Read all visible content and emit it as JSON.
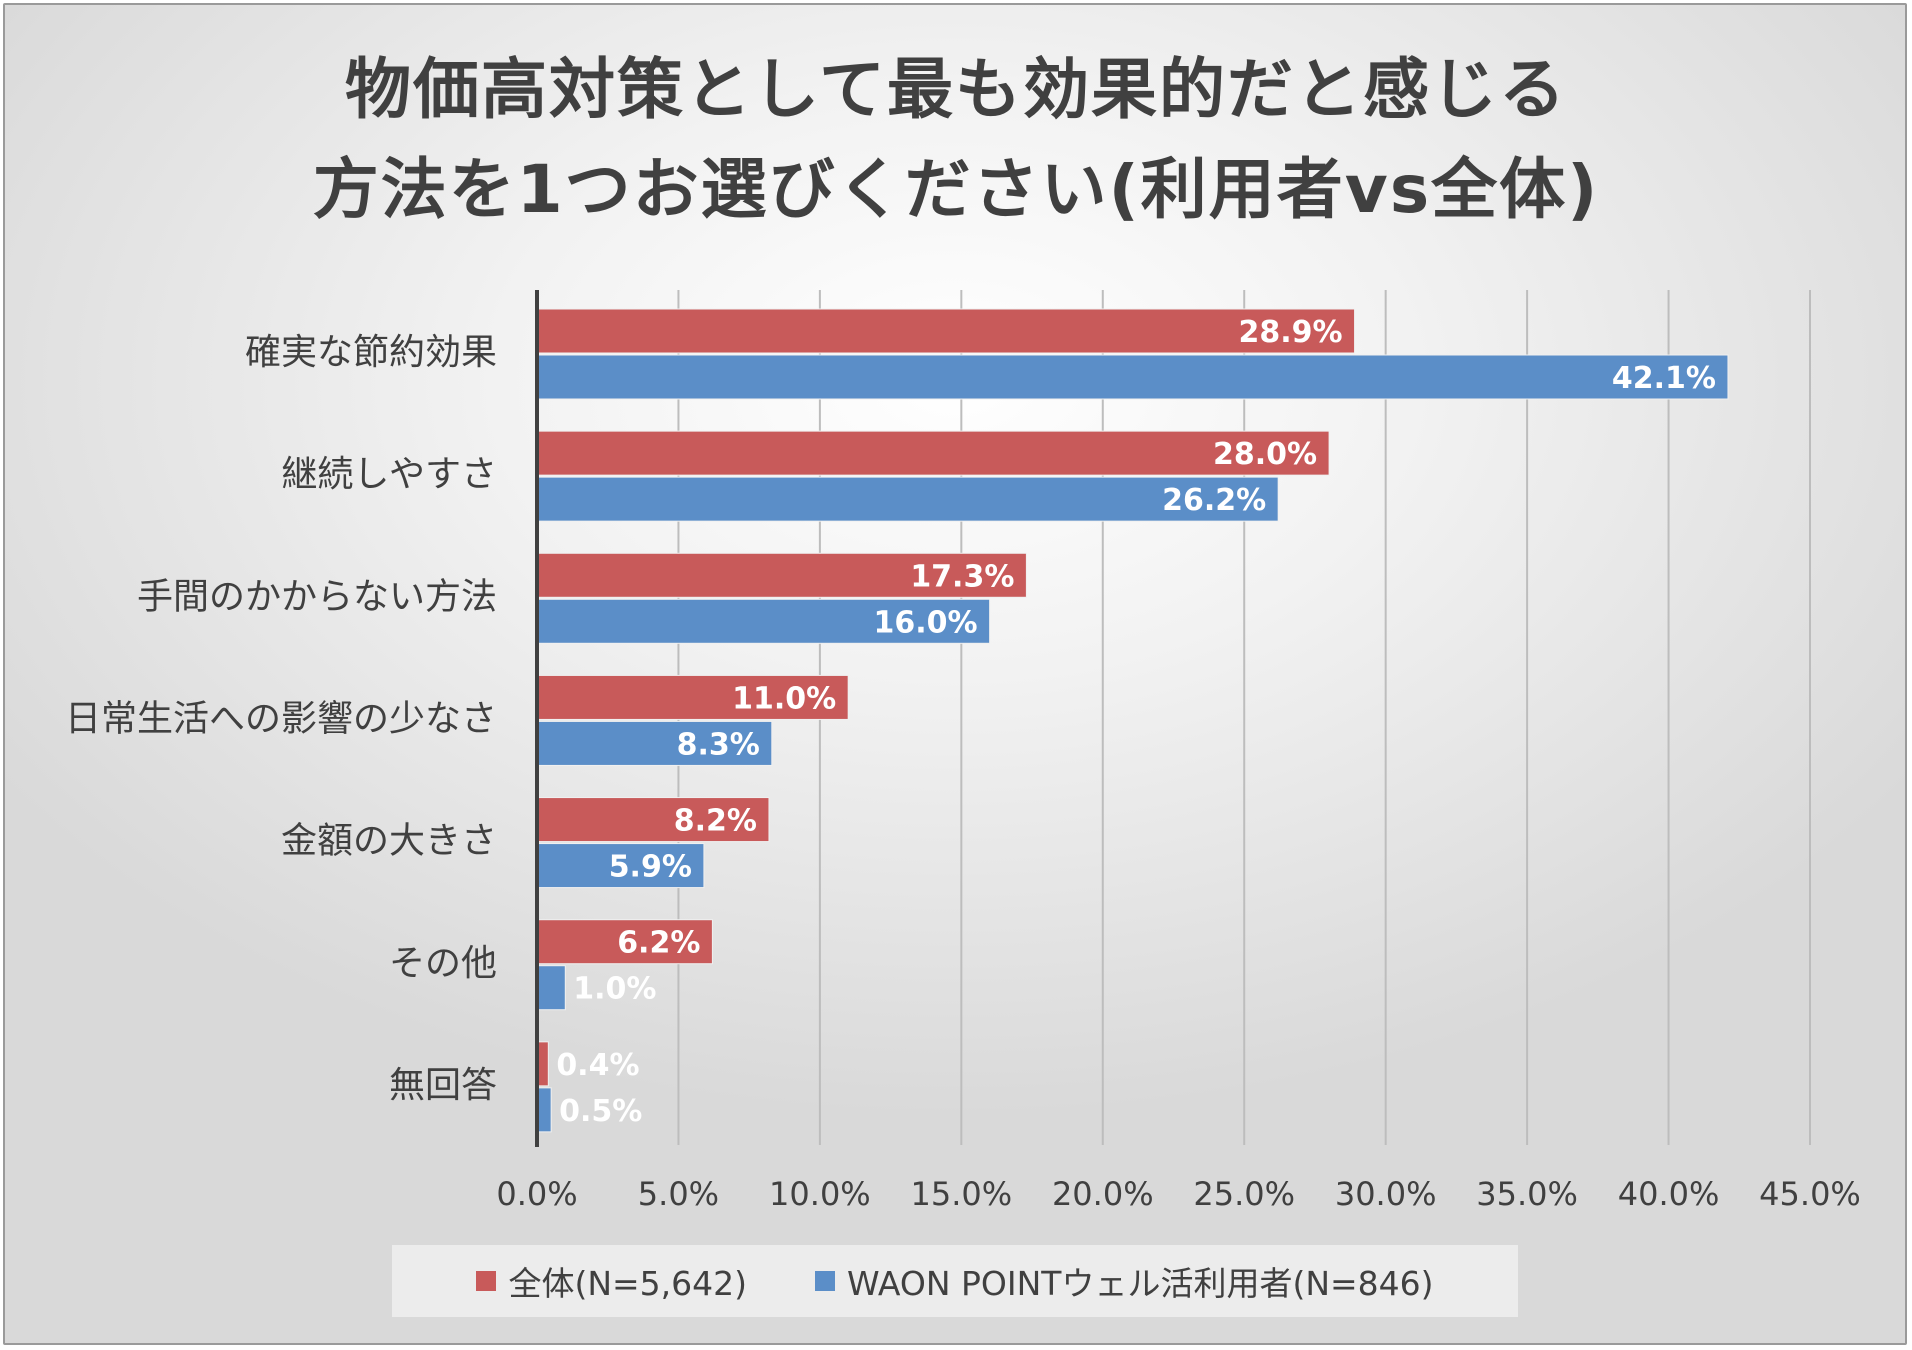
{
  "chart_data": {
    "type": "bar",
    "orientation": "horizontal",
    "title_lines": [
      "物価高対策として最も効果的だと感じる",
      "方法を1つお選びください(利用者vs全体)"
    ],
    "categories": [
      "確実な節約効果",
      "継続しやすさ",
      "手間のかからない方法",
      "日常生活への影響の少なさ",
      "金額の大きさ",
      "その他",
      "無回答"
    ],
    "series": [
      {
        "name": "全体(N=5,642)",
        "color": "#c85a5a",
        "values": [
          28.9,
          28.0,
          17.3,
          11.0,
          8.2,
          6.2,
          0.4
        ],
        "labels": [
          "28.9%",
          "28.0%",
          "17.3%",
          "11.0%",
          "8.2%",
          "6.2%",
          "0.4%"
        ]
      },
      {
        "name": "WAON POINTウェル活利用者(N=846)",
        "color": "#5b8ec8",
        "values": [
          42.1,
          26.2,
          16.0,
          8.3,
          5.9,
          1.0,
          0.5
        ],
        "labels": [
          "42.1%",
          "26.2%",
          "16.0%",
          "8.3%",
          "5.9%",
          "1.0%",
          "0.5%"
        ]
      }
    ],
    "x_ticks": [
      0,
      5,
      10,
      15,
      20,
      25,
      30,
      35,
      40,
      45
    ],
    "x_tick_labels": [
      "0.0%",
      "5.0%",
      "10.0%",
      "15.0%",
      "20.0%",
      "25.0%",
      "30.0%",
      "35.0%",
      "40.0%",
      "45.0%"
    ],
    "xlim": [
      0,
      45
    ],
    "grid": true,
    "legend_position": "bottom"
  }
}
